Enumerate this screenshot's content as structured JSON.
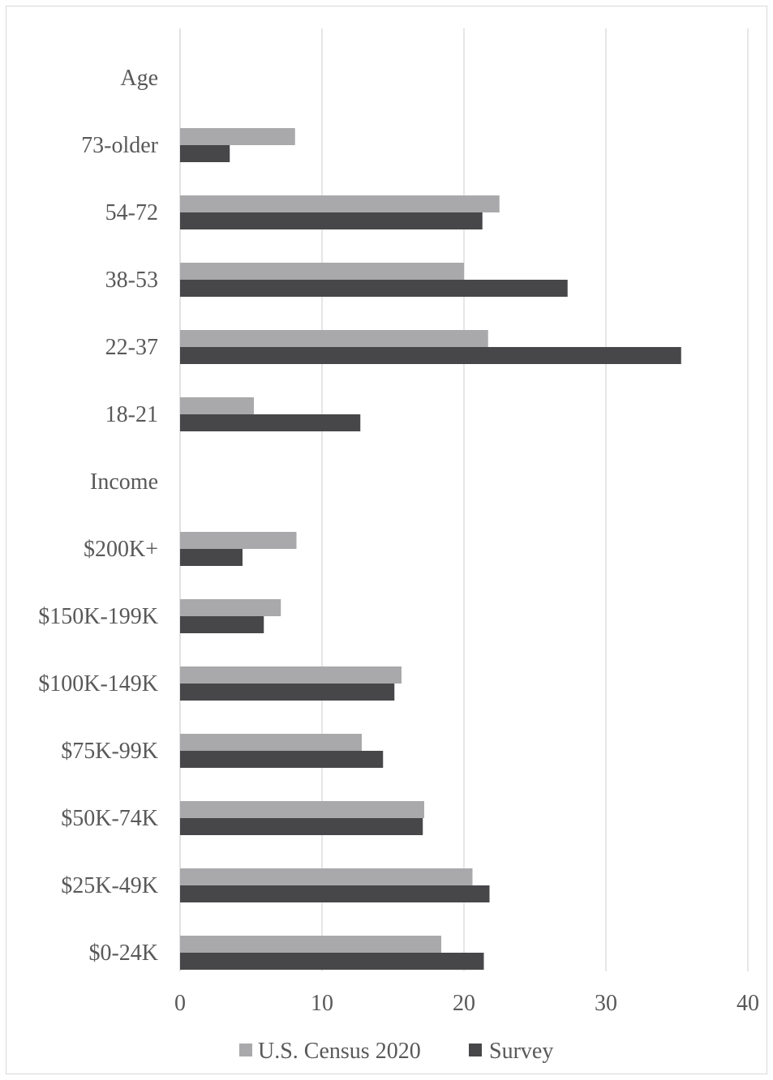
{
  "chart_data": {
    "type": "bar",
    "orientation": "horizontal",
    "categories": [
      "$0-24K",
      "$25K-49K",
      "$50K-74K",
      "$75K-99K",
      "$100K-149K",
      "$150K-199K",
      "$200K+",
      "Income",
      "18-21",
      "22-37",
      "38-53",
      "54-72",
      "73-older",
      "Age"
    ],
    "series": [
      {
        "name": "U.S. Census 2020",
        "color": "#a9a9ab",
        "values": [
          18.4,
          20.6,
          17.2,
          12.8,
          15.6,
          7.1,
          8.2,
          null,
          5.2,
          21.7,
          20.0,
          22.5,
          8.1,
          null
        ]
      },
      {
        "name": "Survey",
        "color": "#47474a",
        "values": [
          21.4,
          21.8,
          17.1,
          14.3,
          15.1,
          5.9,
          4.4,
          null,
          12.7,
          35.3,
          27.3,
          21.3,
          3.5,
          null
        ]
      }
    ],
    "xlim": [
      0,
      40
    ],
    "xticks": [
      "0",
      "10",
      "20",
      "30",
      "40"
    ],
    "grid": true,
    "legend": "bottom",
    "title": "",
    "xlabel": "",
    "ylabel": ""
  }
}
